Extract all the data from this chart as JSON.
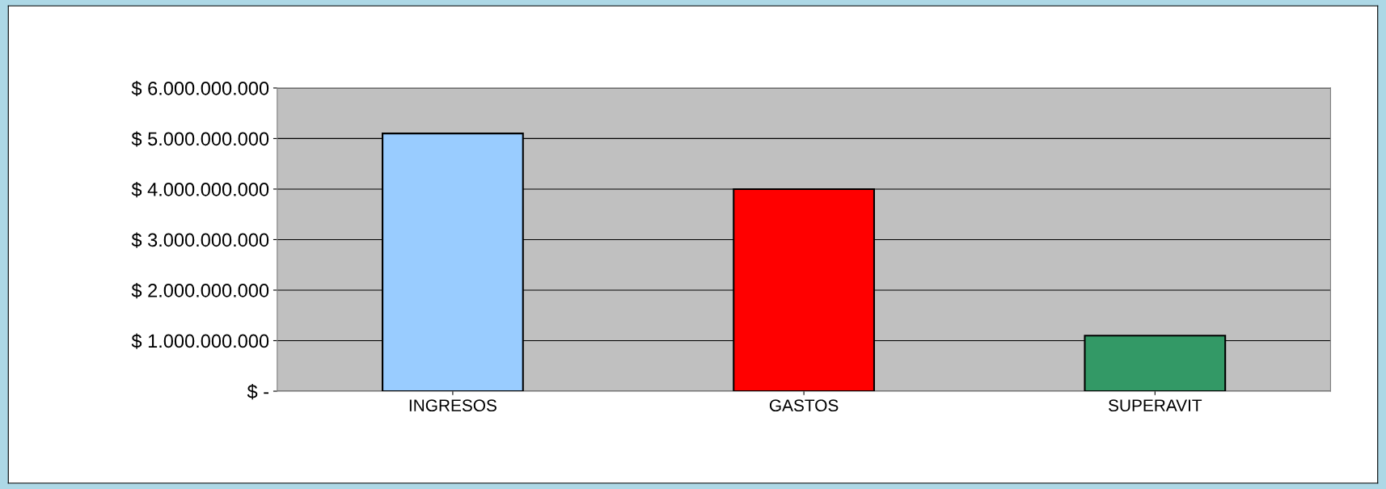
{
  "chart_data": {
    "type": "bar",
    "categories": [
      "INGRESOS",
      "GASTOS",
      "SUPERAVIT"
    ],
    "values": [
      5100000000,
      4000000000,
      1100000000
    ],
    "colors": [
      "#99ccff",
      "#ff0000",
      "#339966"
    ],
    "ylim": [
      0,
      6000000000
    ],
    "yticks": [
      {
        "value": 0,
        "label": "$ -"
      },
      {
        "value": 1000000000,
        "label": "$ 1.000.000.000"
      },
      {
        "value": 2000000000,
        "label": "$ 2.000.000.000"
      },
      {
        "value": 3000000000,
        "label": "$ 3.000.000.000"
      },
      {
        "value": 4000000000,
        "label": "$ 4.000.000.000"
      },
      {
        "value": 5000000000,
        "label": "$ 5.000.000.000"
      },
      {
        "value": 6000000000,
        "label": "$ 6.000.000.000"
      }
    ],
    "grid": "y"
  }
}
